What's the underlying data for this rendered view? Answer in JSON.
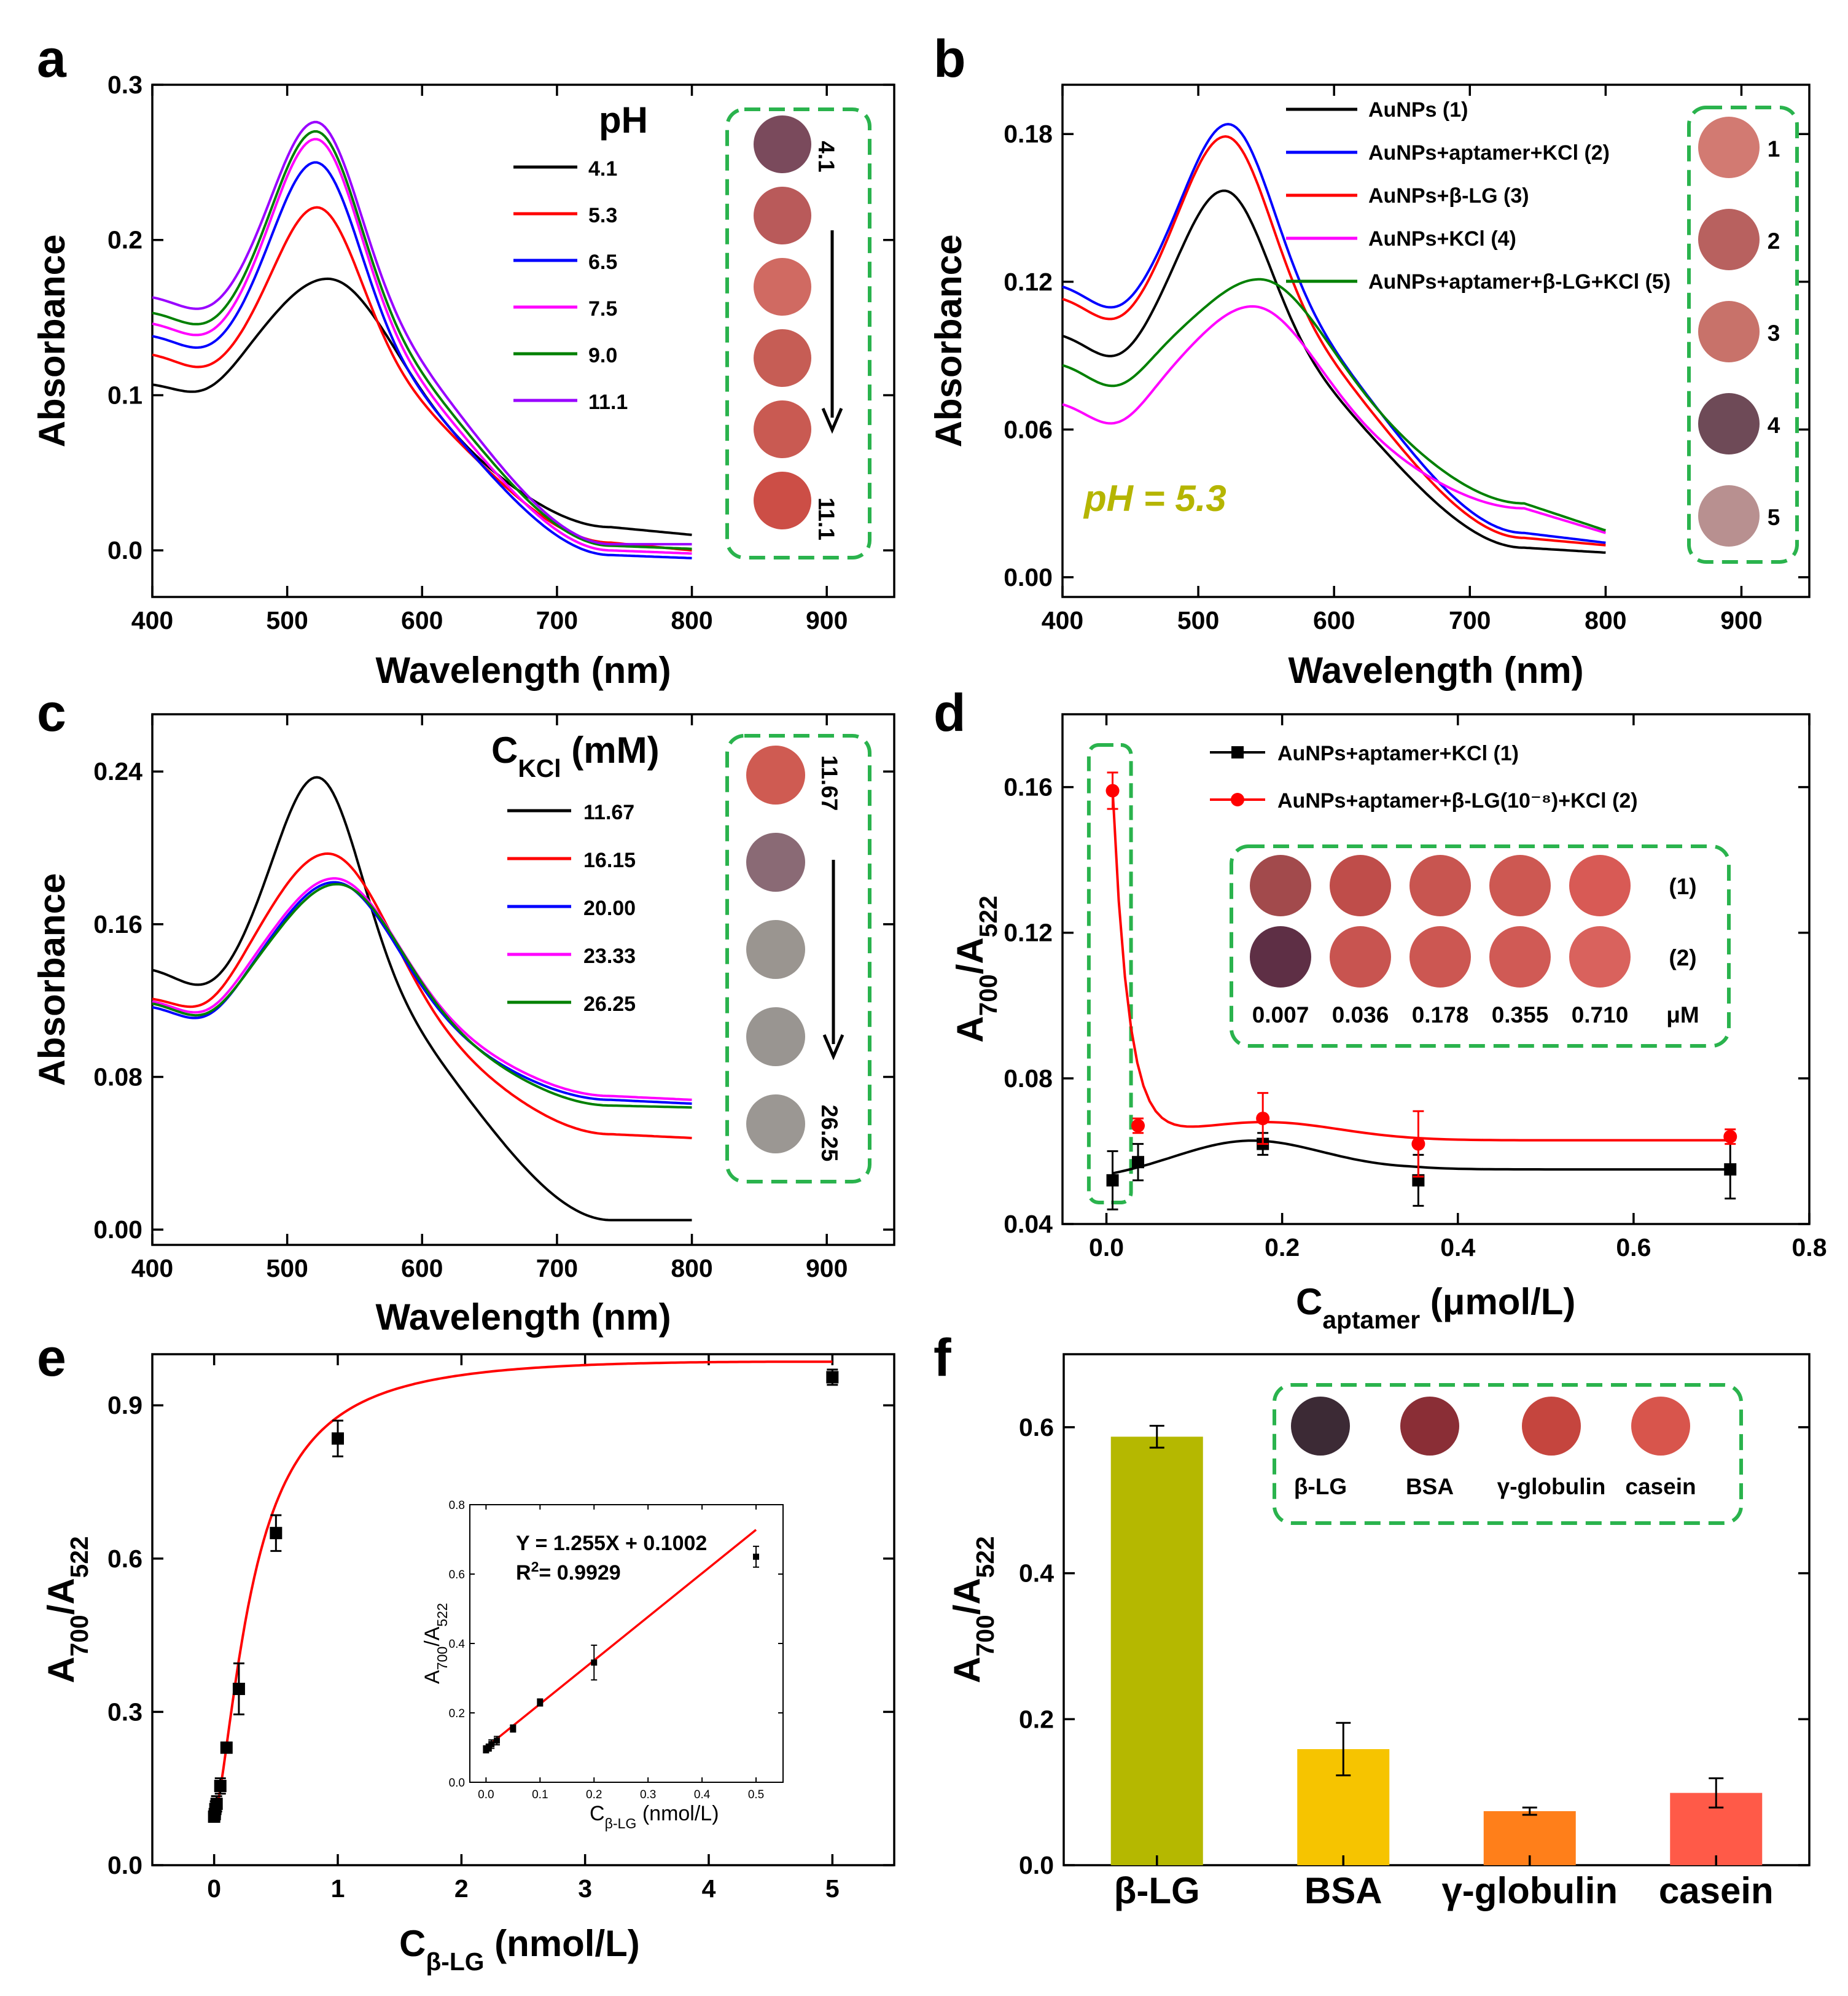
{
  "colors": {
    "black": "#000000",
    "red": "#ff0000",
    "blue": "#0000ff",
    "magenta": "#ff00ff",
    "green": "#008000",
    "purple": "#9900ff",
    "dash_box": "#2ab34d",
    "ph_label": "#b5b500"
  },
  "chart_data": [
    {
      "panel": "a",
      "type": "line",
      "xlabel": "Wavelength (nm)",
      "ylabel": "Absorbance",
      "xlim": [
        400,
        950
      ],
      "ylim": [
        -0.03,
        0.3
      ],
      "xticks": [
        "400",
        "500",
        "600",
        "700",
        "800",
        "900"
      ],
      "yticks": [
        "0.0",
        "0.1",
        "0.2",
        "0.3"
      ],
      "legend_title": "pH",
      "series": [
        {
          "name": "4.1",
          "color": "#000000",
          "base": 0.108,
          "peak_x": 530,
          "peak_y": 0.175,
          "right": 0.015,
          "tail": 0.01,
          "wide": 1
        },
        {
          "name": "5.3",
          "color": "#ff0000",
          "base": 0.128,
          "peak_x": 522,
          "peak_y": 0.221,
          "right": 0.005,
          "tail": 0.0
        },
        {
          "name": "6.5",
          "color": "#0000ff",
          "base": 0.14,
          "peak_x": 521,
          "peak_y": 0.25,
          "right": -0.003,
          "tail": -0.005
        },
        {
          "name": "7.5",
          "color": "#ff00ff",
          "base": 0.148,
          "peak_x": 521,
          "peak_y": 0.265,
          "right": 0.0,
          "tail": -0.002
        },
        {
          "name": "9.0",
          "color": "#008000",
          "base": 0.155,
          "peak_x": 521,
          "peak_y": 0.27,
          "right": 0.003,
          "tail": 0.001
        },
        {
          "name": "11.1",
          "color": "#9900ff",
          "base": 0.165,
          "peak_x": 521,
          "peak_y": 0.276,
          "right": 0.004,
          "tail": 0.004
        }
      ],
      "inset": {
        "top_label": "4.1",
        "bottom_label": "11.1",
        "wells": [
          "#7a4a5c",
          "#b95a5a",
          "#d06a62",
          "#c65d55",
          "#c95a52",
          "#cc4e46"
        ]
      }
    },
    {
      "panel": "b",
      "type": "line",
      "xlabel": "Wavelength (nm)",
      "ylabel": "Absorbance",
      "xlim": [
        400,
        950
      ],
      "ylim": [
        -0.008,
        0.2
      ],
      "xticks": [
        "400",
        "500",
        "600",
        "700",
        "800",
        "900"
      ],
      "yticks": [
        "0.00",
        "0.06",
        "0.12",
        "0.18"
      ],
      "annotation": "pH = 5.3",
      "series": [
        {
          "name": "AuNPs (1)",
          "color": "#000000",
          "base": 0.1,
          "peak_x": 519,
          "peak_y": 0.157,
          "right": 0.012,
          "tail": 0.01
        },
        {
          "name": "AuNPs+aptamer+KCl (2)",
          "color": "#0000ff",
          "base": 0.12,
          "peak_x": 522,
          "peak_y": 0.184,
          "right": 0.018,
          "tail": 0.014
        },
        {
          "name": "AuNPs+β-LG (3)",
          "color": "#ff0000",
          "base": 0.115,
          "peak_x": 520,
          "peak_y": 0.179,
          "right": 0.016,
          "tail": 0.013
        },
        {
          "name": "AuNPs+KCl (4)",
          "color": "#ff00ff",
          "base": 0.072,
          "peak_x": 540,
          "peak_y": 0.11,
          "right": 0.028,
          "tail": 0.018,
          "wide": 1
        },
        {
          "name": "AuNPs+aptamer+β-LG+KCl (5)",
          "color": "#008000",
          "base": 0.088,
          "peak_x": 545,
          "peak_y": 0.121,
          "right": 0.03,
          "tail": 0.019,
          "wide": 1
        }
      ],
      "inset": {
        "labels": [
          "1",
          "2",
          "3",
          "4",
          "5"
        ],
        "wells": [
          "#d27a72",
          "#b8615f",
          "#c8726a",
          "#6e4a57",
          "#b89090"
        ]
      }
    },
    {
      "panel": "c",
      "type": "line",
      "xlabel": "Wavelength (nm)",
      "ylabel": "Absorbance",
      "xlim": [
        400,
        950
      ],
      "ylim": [
        -0.008,
        0.27
      ],
      "xticks": [
        "400",
        "500",
        "600",
        "700",
        "800",
        "900"
      ],
      "yticks": [
        "0.00",
        "0.08",
        "0.16",
        "0.24"
      ],
      "legend_title": "C",
      "legend_title_sub": "KCl",
      "legend_title_unit": " (mM)",
      "series": [
        {
          "name": "11.67",
          "color": "#000000",
          "base": 0.138,
          "peak_x": 522,
          "peak_y": 0.237,
          "right": 0.005,
          "tail": 0.005
        },
        {
          "name": "16.15",
          "color": "#ff0000",
          "base": 0.122,
          "peak_x": 530,
          "peak_y": 0.197,
          "right": 0.05,
          "tail": 0.048,
          "wide": 1
        },
        {
          "name": "20.00",
          "color": "#0000ff",
          "base": 0.118,
          "peak_x": 535,
          "peak_y": 0.182,
          "right": 0.068,
          "tail": 0.066,
          "wide": 1
        },
        {
          "name": "23.33",
          "color": "#ff00ff",
          "base": 0.121,
          "peak_x": 535,
          "peak_y": 0.184,
          "right": 0.07,
          "tail": 0.068,
          "wide": 1
        },
        {
          "name": "26.25",
          "color": "#008000",
          "base": 0.12,
          "peak_x": 537,
          "peak_y": 0.181,
          "right": 0.065,
          "tail": 0.064,
          "wide": 1
        }
      ],
      "inset": {
        "top_label": "11.67",
        "bottom_label": "26.25",
        "wells": [
          "#cf5b52",
          "#8a6a75",
          "#9a9590",
          "#999591",
          "#9b9793"
        ]
      }
    },
    {
      "panel": "d",
      "type": "scatter",
      "xlabel": "C",
      "xlabel_sub": "aptamer",
      "xlabel_unit": " (μmol/L)",
      "ylabel": "A",
      "ylabel_sub1": "700",
      "ylabel_mid": "/A",
      "ylabel_sub2": "522",
      "xlim": [
        -0.05,
        0.8
      ],
      "ylim": [
        0.04,
        0.18
      ],
      "xticks": [
        "0.0",
        "0.2",
        "0.4",
        "0.6",
        "0.8"
      ],
      "yticks": [
        "0.04",
        "0.08",
        "0.12",
        "0.16"
      ],
      "series": [
        {
          "name": "AuNPs+aptamer+KCl (1)",
          "color": "#000000",
          "x": [
            0.007,
            0.036,
            0.178,
            0.355,
            0.71
          ],
          "y": [
            0.052,
            0.057,
            0.062,
            0.052,
            0.055
          ],
          "err": [
            0.008,
            0.005,
            0.003,
            0.007,
            0.008
          ]
        },
        {
          "name": "AuNPs+aptamer+β-LG(10⁻⁸)+KCl (2)",
          "color": "#ff0000",
          "x": [
            0.007,
            0.036,
            0.178,
            0.355,
            0.71
          ],
          "y": [
            0.159,
            0.067,
            0.069,
            0.062,
            0.064
          ],
          "err": [
            0.005,
            0.002,
            0.007,
            0.009,
            0.002
          ]
        }
      ],
      "inset": {
        "row_labels": [
          "(1)",
          "(2)"
        ],
        "conc": [
          "0.007",
          "0.036",
          "0.178",
          "0.355",
          "0.710"
        ],
        "unit": "μM",
        "row1": [
          "#a24a4c",
          "#bf4d4a",
          "#c85550",
          "#cd5852",
          "#d85a55"
        ],
        "row2": [
          "#5e2f45",
          "#c85450",
          "#cc5752",
          "#d05a55",
          "#d9625d"
        ]
      }
    },
    {
      "panel": "e",
      "type": "scatter",
      "xlabel": "C",
      "xlabel_sub": "β-LG",
      "xlabel_unit": " (nmol/L)",
      "ylabel": "A",
      "ylabel_sub1": "700",
      "ylabel_mid": "/A",
      "ylabel_sub2": "522",
      "xlim": [
        -0.5,
        5.5
      ],
      "ylim": [
        0.0,
        1.0
      ],
      "xticks": [
        "0",
        "1",
        "2",
        "3",
        "4",
        "5"
      ],
      "yticks": [
        "0.0",
        "0.3",
        "0.6",
        "0.9"
      ],
      "x": [
        0.0,
        0.005,
        0.01,
        0.02,
        0.05,
        0.1,
        0.2,
        0.5,
        1.0,
        5.0
      ],
      "y": [
        0.095,
        0.1,
        0.11,
        0.12,
        0.155,
        0.23,
        0.345,
        0.65,
        0.835,
        0.955
      ],
      "err": [
        0.01,
        0.01,
        0.015,
        0.015,
        0.015,
        0.01,
        0.05,
        0.035,
        0.035,
        0.015
      ],
      "inset": {
        "xlabel": "C",
        "xlabel_sub": "β-LG",
        "xlabel_unit": " (nmol/L)",
        "ylabel": "A",
        "ylabel_sub1": "700",
        "ylabel_mid": "/A",
        "ylabel_sub2": "522",
        "xlim": [
          -0.03,
          0.55
        ],
        "ylim": [
          0.0,
          0.8
        ],
        "xticks": [
          "0.0",
          "0.1",
          "0.2",
          "0.3",
          "0.4",
          "0.5"
        ],
        "yticks": [
          "0.0",
          "0.2",
          "0.4",
          "0.6",
          "0.8"
        ],
        "equation": "Y = 1.255X + 0.1002",
        "r2_label": "R",
        "r2_sup": "2",
        "r2_value": "= 0.9929",
        "slope": 1.255,
        "intercept": 0.1002,
        "x": [
          0.0,
          0.005,
          0.01,
          0.02,
          0.05,
          0.1,
          0.2,
          0.5
        ],
        "y": [
          0.095,
          0.1,
          0.11,
          0.12,
          0.155,
          0.23,
          0.345,
          0.65
        ],
        "err": [
          0.01,
          0.01,
          0.012,
          0.012,
          0.01,
          0.01,
          0.05,
          0.03
        ]
      }
    },
    {
      "panel": "f",
      "type": "bar",
      "ylabel": "A",
      "ylabel_sub1": "700",
      "ylabel_mid": "/A",
      "ylabel_sub2": "522",
      "ylim": [
        0.0,
        0.7
      ],
      "yticks": [
        "0.0",
        "0.2",
        "0.4",
        "0.6"
      ],
      "categories": [
        "β-LG",
        "BSA",
        "γ-globulin",
        "casein"
      ],
      "values": [
        0.587,
        0.159,
        0.074,
        0.099
      ],
      "err": [
        0.015,
        0.036,
        0.005,
        0.02
      ],
      "bar_colors": [
        "#b5b800",
        "#f6c400",
        "#ff7f1a",
        "#ff5a48"
      ],
      "inset": {
        "labels": [
          "β-LG",
          "BSA",
          "γ-globulin",
          "casein"
        ],
        "wells": [
          "#3c2a35",
          "#8a2e36",
          "#c5453e",
          "#d8554c"
        ]
      }
    }
  ],
  "panel_letters": [
    "a",
    "b",
    "c",
    "d",
    "e",
    "f"
  ]
}
